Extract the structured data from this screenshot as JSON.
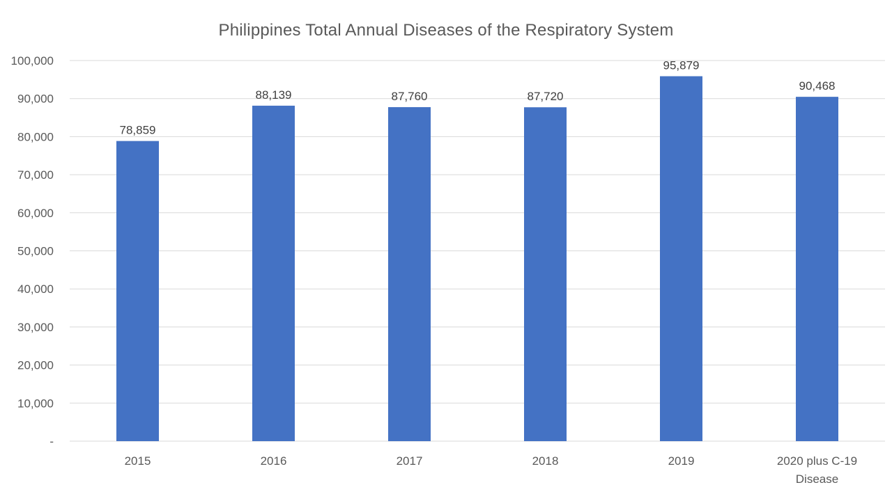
{
  "chart_data": {
    "type": "bar",
    "title": "Philippines Total Annual Diseases of the Respiratory System",
    "categories": [
      [
        "2015"
      ],
      [
        "2016"
      ],
      [
        "2017"
      ],
      [
        "2018"
      ],
      [
        "2019"
      ],
      [
        "2020 plus C-19",
        "Disease"
      ]
    ],
    "values": [
      78859,
      88139,
      87760,
      87720,
      95879,
      90468
    ],
    "data_labels": [
      "78,859",
      "88,139",
      "87,760",
      "87,720",
      "95,879",
      "90,468"
    ],
    "ylim": [
      0,
      100000
    ],
    "y_ticks": [
      0,
      10000,
      20000,
      30000,
      40000,
      50000,
      60000,
      70000,
      80000,
      90000,
      100000
    ],
    "y_tick_labels": [
      "-",
      "10,000",
      "20,000",
      "30,000",
      "40,000",
      "50,000",
      "60,000",
      "70,000",
      "80,000",
      "90,000",
      "100,000"
    ],
    "xlabel": "",
    "ylabel": "",
    "grid": true,
    "legend": "none",
    "bar_color": "#4472C4",
    "grid_color": "#D9D9D9",
    "text_color": "#595959"
  }
}
